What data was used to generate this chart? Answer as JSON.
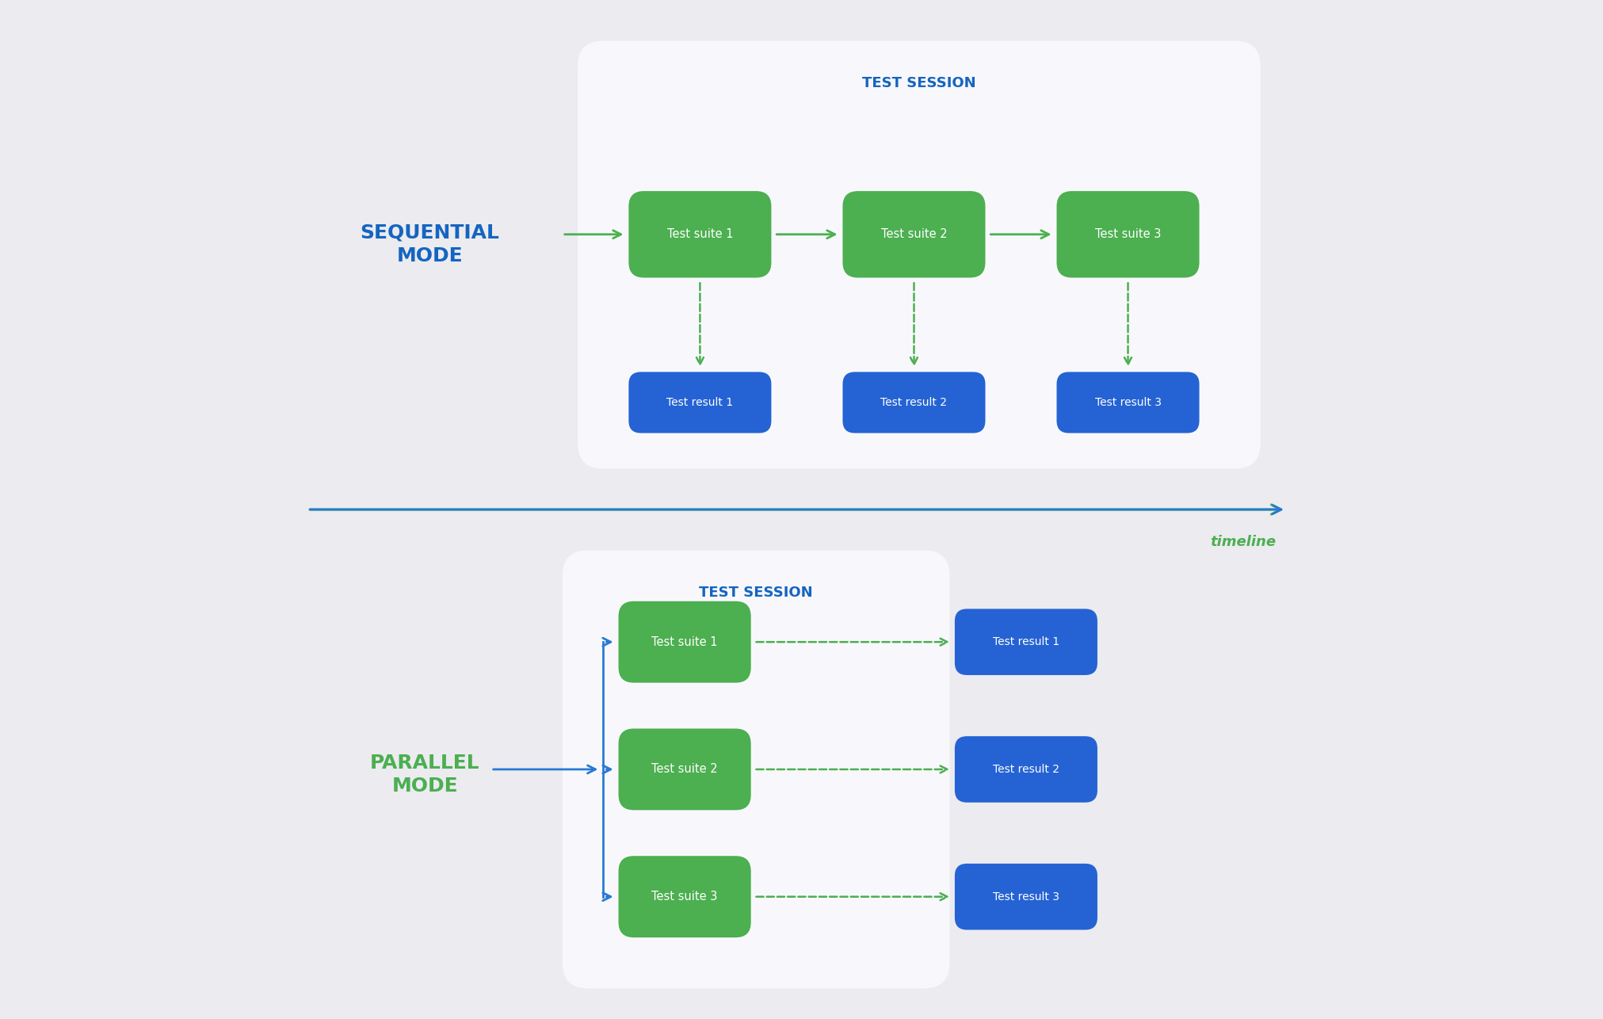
{
  "bg_color": "#ebebf0",
  "white_box_color": "#f8f8fc",
  "green_suite_color": "#4caf50",
  "blue_result_color": "#2563d4",
  "blue_arrow_color": "#2979d4",
  "green_arrow_color": "#4caf50",
  "dashed_arrow_color": "#4caf50",
  "seq_label_color": "#1565c0",
  "par_label_color": "#4caf50",
  "test_session_color": "#1565c0",
  "timeline_label_color": "#4caf50",
  "white_text": "#ffffff",
  "figsize": [
    20.24,
    12.86
  ],
  "dpi": 100,
  "sequential_label": "SEQUENTIAL\nMODE",
  "parallel_label": "PARALLEL\nMODE",
  "test_session_label": "TEST SESSION",
  "timeline_label": "timeline",
  "suite_labels": [
    "Test suite 1",
    "Test suite 2",
    "Test suite 3"
  ],
  "result_labels": [
    "Test result 1",
    "Test result 2",
    "Test result 3"
  ]
}
